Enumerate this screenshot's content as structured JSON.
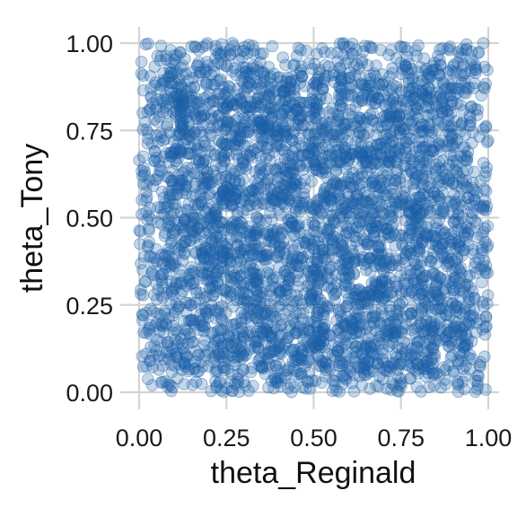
{
  "chart_data": {
    "type": "scatter",
    "xlabel": "theta_Reginald",
    "ylabel": "theta_Tony",
    "xlim": [
      -0.05,
      1.03
    ],
    "ylim": [
      -0.05,
      1.03
    ],
    "x_ticks": [
      0.0,
      0.25,
      0.5,
      0.75,
      1.0
    ],
    "x_tick_labels": [
      "0.00",
      "0.25",
      "0.50",
      "0.75",
      "1.00"
    ],
    "y_ticks": [
      0.0,
      0.25,
      0.5,
      0.75,
      1.0
    ],
    "y_tick_labels": [
      "0.00",
      "0.25",
      "0.50",
      "0.75",
      "1.00"
    ],
    "grid": true,
    "point_color": "#1a5ea8",
    "point_alpha": 0.25,
    "series": [
      {
        "distribution": "approximately uniform on [0,1] x [0,1], thinning toward edges",
        "approx_point_count": 4000,
        "points": [
          [
            0.15,
            0.99
          ],
          [
            0.16,
            0.99
          ],
          [
            0.17,
            0.98
          ],
          [
            0.22,
            0.98
          ],
          [
            0.31,
            0.97
          ],
          [
            0.09,
            0.98
          ],
          [
            0.06,
            0.95
          ],
          [
            0.89,
            0.99
          ],
          [
            0.92,
            0.96
          ],
          [
            0.95,
            0.94
          ],
          [
            0.03,
            0.81
          ],
          [
            0.01,
            0.8
          ],
          [
            0.99,
            0.87
          ],
          [
            0.98,
            0.85
          ],
          [
            0.04,
            0.59
          ],
          [
            0.02,
            0.55
          ],
          [
            0.99,
            0.47
          ],
          [
            0.98,
            0.45
          ],
          [
            0.01,
            0.35
          ],
          [
            0.03,
            0.39
          ],
          [
            0.02,
            0.17
          ],
          [
            0.03,
            0.09
          ],
          [
            0.05,
            0.12
          ],
          [
            0.11,
            0.04
          ],
          [
            0.14,
            0.06
          ],
          [
            0.49,
            0.01
          ],
          [
            0.71,
            0.01
          ],
          [
            0.73,
            0.02
          ],
          [
            0.97,
            0.02
          ],
          [
            0.93,
            0.13
          ],
          [
            0.86,
            0.05
          ],
          [
            0.59,
            0.04
          ],
          [
            0.3,
            0.03
          ],
          [
            0.42,
            0.05
          ],
          [
            0.36,
            0.11
          ],
          [
            0.25,
            0.27
          ],
          [
            0.4,
            0.4
          ],
          [
            0.55,
            0.55
          ],
          [
            0.7,
            0.7
          ],
          [
            0.35,
            0.65
          ],
          [
            0.65,
            0.35
          ],
          [
            0.5,
            0.2
          ],
          [
            0.2,
            0.5
          ],
          [
            0.8,
            0.5
          ],
          [
            0.5,
            0.8
          ],
          [
            0.15,
            0.85
          ],
          [
            0.85,
            0.15
          ],
          [
            0.3,
            0.3
          ],
          [
            0.6,
            0.9
          ],
          [
            0.9,
            0.6
          ]
        ]
      }
    ]
  }
}
